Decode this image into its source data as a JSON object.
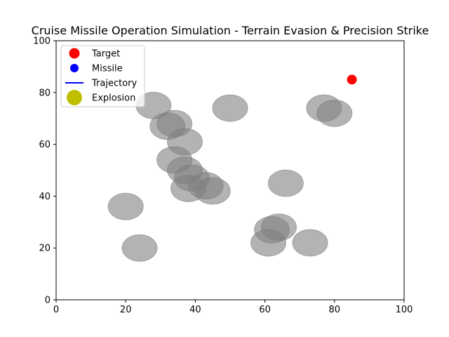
{
  "chart_data": {
    "type": "scatter",
    "title": "Cruise Missile Operation Simulation - Terrain Evasion & Precision Strike",
    "xlabel": "",
    "ylabel": "",
    "xlim": [
      0,
      100
    ],
    "ylim": [
      0,
      100
    ],
    "x_ticks": [
      "0",
      "20",
      "40",
      "60",
      "80",
      "100"
    ],
    "y_ticks": [
      "0",
      "20",
      "40",
      "60",
      "80",
      "100"
    ],
    "grid": false,
    "legend_placement": "upper-left",
    "legend": [
      {
        "label": "Target",
        "marker": "circle",
        "color": "#ff0000"
      },
      {
        "label": "Missile",
        "marker": "circle",
        "color": "#0000ff"
      },
      {
        "label": "Trajectory",
        "marker": "line",
        "color": "#0000ff"
      },
      {
        "label": "Explosion",
        "marker": "circle",
        "color": "#bfbf00"
      }
    ],
    "target": {
      "x": 85,
      "y": 85,
      "color": "#ff0000"
    },
    "obstacle_color": "#808080",
    "obstacles": [
      {
        "x": 28,
        "y": 75
      },
      {
        "x": 50,
        "y": 74
      },
      {
        "x": 77,
        "y": 74
      },
      {
        "x": 80,
        "y": 72
      },
      {
        "x": 34,
        "y": 68
      },
      {
        "x": 32,
        "y": 67
      },
      {
        "x": 37,
        "y": 61
      },
      {
        "x": 34,
        "y": 54
      },
      {
        "x": 37,
        "y": 50
      },
      {
        "x": 39,
        "y": 47
      },
      {
        "x": 38,
        "y": 43
      },
      {
        "x": 43,
        "y": 44
      },
      {
        "x": 45,
        "y": 42
      },
      {
        "x": 66,
        "y": 45
      },
      {
        "x": 20,
        "y": 36
      },
      {
        "x": 64,
        "y": 28
      },
      {
        "x": 62,
        "y": 27
      },
      {
        "x": 61,
        "y": 22
      },
      {
        "x": 73,
        "y": 22
      },
      {
        "x": 24,
        "y": 20
      }
    ]
  }
}
